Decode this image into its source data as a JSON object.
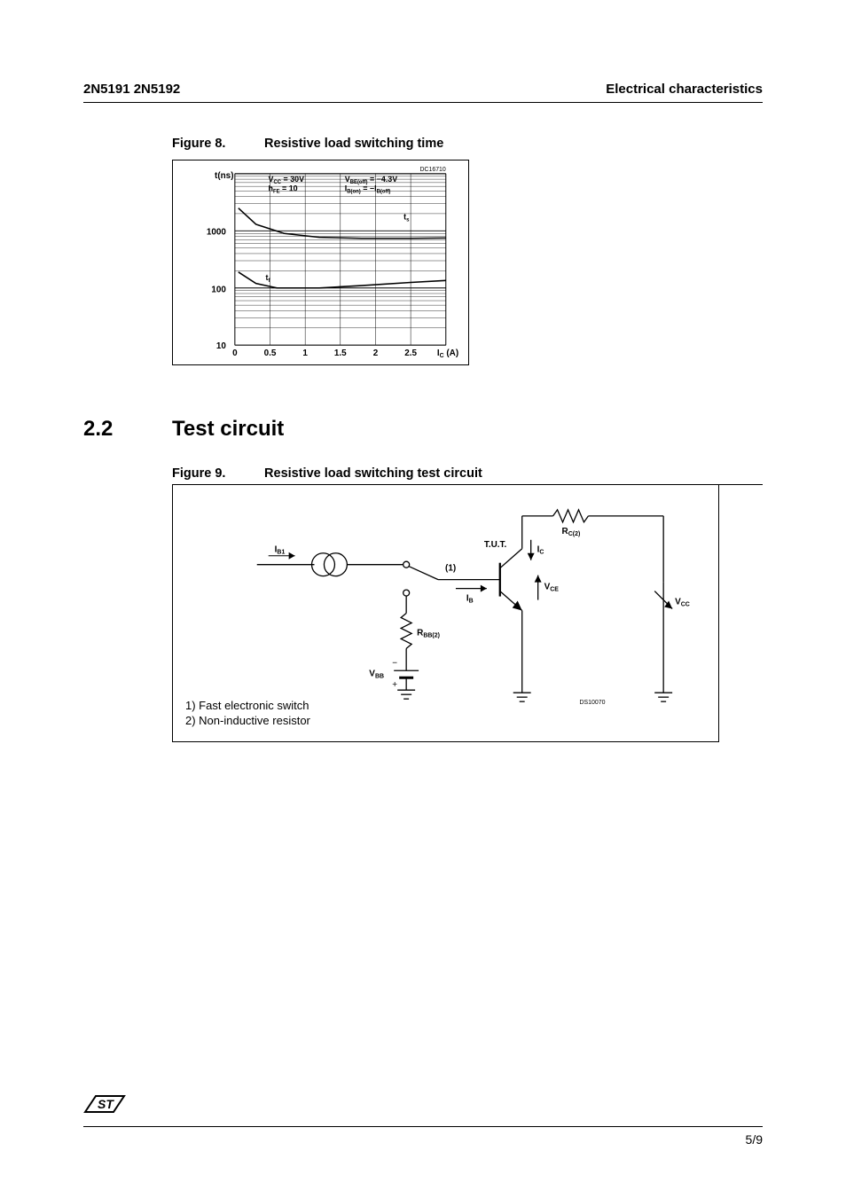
{
  "header": {
    "left": "2N5191 2N5192",
    "right": "Electrical characteristics"
  },
  "figure8": {
    "label": "Figure 8.",
    "title": "Resistive load switching time",
    "chart": {
      "type": "line-loglin",
      "code": "DC16710",
      "y_axis_label": "t(ns)",
      "x_axis_label": "I_C (A)",
      "x_ticks": [
        "0",
        "0.5",
        "1",
        "1.5",
        "2",
        "2.5"
      ],
      "x_range": [
        0,
        3
      ],
      "y_ticks": [
        "10",
        "100",
        "1000"
      ],
      "y_range_log": [
        1,
        4
      ],
      "annotations": {
        "vcc": "V_CC = 30V",
        "hfe": "h_FE = 10",
        "vbe": "V_BE(off) = -4.3V",
        "ib": "I_B(on) = -I_B(off)"
      },
      "series": [
        {
          "name": "t_s",
          "label": "t_s",
          "color": "#000000",
          "points": [
            [
              0.05,
              2500
            ],
            [
              0.3,
              1300
            ],
            [
              0.7,
              900
            ],
            [
              1.2,
              770
            ],
            [
              1.8,
              740
            ],
            [
              2.5,
              740
            ],
            [
              3.0,
              750
            ]
          ]
        },
        {
          "name": "t_f",
          "label": "t_f",
          "color": "#000000",
          "points": [
            [
              0.05,
              190
            ],
            [
              0.3,
              120
            ],
            [
              0.6,
              100
            ],
            [
              1.2,
              100
            ],
            [
              1.8,
              110
            ],
            [
              2.5,
              125
            ],
            [
              3.0,
              135
            ]
          ]
        }
      ],
      "grid_color": "#000000",
      "background": "#ffffff"
    }
  },
  "section": {
    "number": "2.2",
    "title": "Test circuit"
  },
  "figure9": {
    "label": "Figure 9.",
    "title": "Resistive load switching test circuit",
    "code": "DS10070",
    "notes": {
      "n1": "1) Fast electronic switch",
      "n2": "2) Non-inductive resistor"
    },
    "labels": {
      "ib1": "I_B1",
      "tut": "T.U.T.",
      "ic": "I_C",
      "vce": "V_CE",
      "ib": "I_B",
      "rbb2": "R_BB(2)",
      "vbb": "V_BB",
      "rc2": "R_C(2)",
      "vcc": "V_CC",
      "marker1": "(1)"
    }
  },
  "footer": {
    "page": "5/9"
  }
}
